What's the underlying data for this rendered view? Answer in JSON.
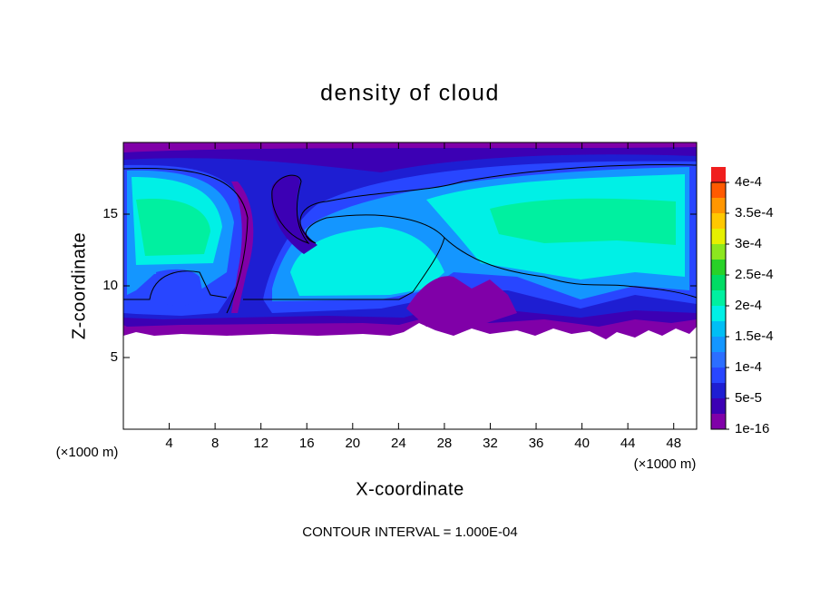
{
  "chart_data": {
    "type": "contour",
    "title": "density of cloud",
    "x_label": "X-coordinate",
    "y_label": "Z-coordinate",
    "x_unit_labels": [
      "(×1000 m)",
      "(×1000 m)"
    ],
    "footer": "CONTOUR INTERVAL = 1.000E-04",
    "xlim": [
      0,
      50
    ],
    "xticks": [
      4,
      8,
      12,
      16,
      20,
      24,
      28,
      32,
      36,
      40,
      44,
      48
    ],
    "ylim": [
      0,
      20
    ],
    "yticks": [
      5,
      10,
      15
    ],
    "colorbar_lim": [
      0,
      0.0004
    ],
    "colorbar_ticks": [
      {
        "value": 1e-16,
        "label": "1e-16"
      },
      {
        "value": 5e-05,
        "label": "5e-5"
      },
      {
        "value": 0.0001,
        "label": "1e-4"
      },
      {
        "value": 0.00015,
        "label": "1.5e-4"
      },
      {
        "value": 0.0002,
        "label": "2e-4"
      },
      {
        "value": 0.00025,
        "label": "2.5e-4"
      },
      {
        "value": 0.0003,
        "label": "3e-4"
      },
      {
        "value": 0.00035,
        "label": "3.5e-4"
      },
      {
        "value": 0.0004,
        "label": "4e-4"
      }
    ],
    "colorbar_colors": [
      "#8000a8",
      "#3c00b4",
      "#1e1ed2",
      "#2846ff",
      "#2c6eff",
      "#1496ff",
      "#00bef5",
      "#00f0e6",
      "#00f0a0",
      "#00dc64",
      "#28d228",
      "#8ce61e",
      "#e6f000",
      "#ffc800",
      "#ff9600",
      "#ff5a00",
      "#f01e1e",
      "#ff8c8c"
    ]
  }
}
